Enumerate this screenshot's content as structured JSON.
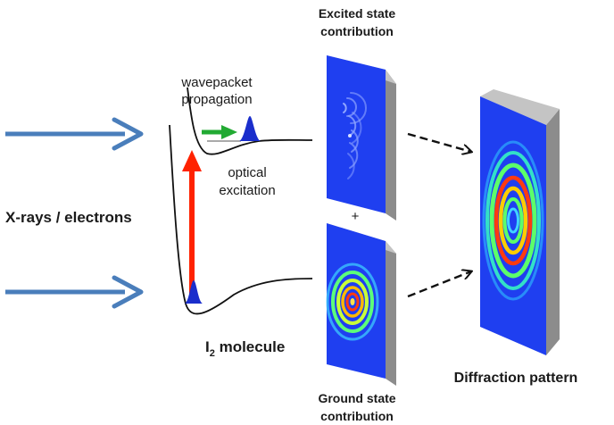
{
  "labels": {
    "excited_title_line1": "Excited state",
    "excited_title_line2": "contribution",
    "wavepacket_line1": "wavepacket",
    "wavepacket_line2": "propagation",
    "optical_line1": "optical",
    "optical_line2": "excitation",
    "xrays": "X-rays / electrons",
    "plus": "+",
    "molecule_main": "I",
    "molecule_sub": "2",
    "molecule_rest": " molecule",
    "ground_line1": "Ground state",
    "ground_line2": "contribution",
    "diffraction": "Diffraction pattern"
  },
  "colors": {
    "beam_arrow": "#4a7ebb",
    "excitation_arrow": "#ff2200",
    "propagation_arrow": "#22aa33",
    "wavepacket": "#1a2ecc",
    "panel_blue": "#1f3ff0",
    "panel_edge": "#a8a8a8",
    "panel_edge_dark": "#8c8c8c"
  }
}
